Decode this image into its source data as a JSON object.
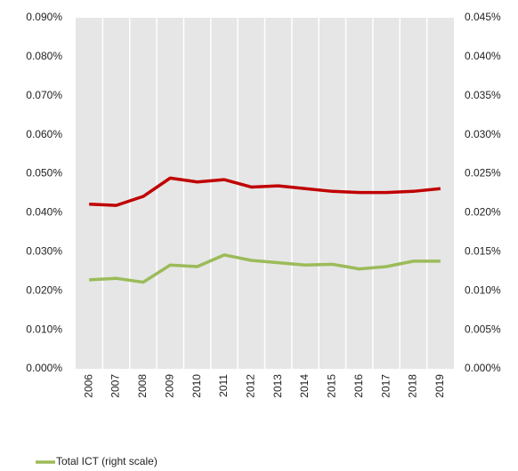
{
  "chart_data": {
    "type": "line",
    "categories": [
      "2006",
      "2007",
      "2008",
      "2009",
      "2010",
      "2011",
      "2012",
      "2013",
      "2014",
      "2015",
      "2016",
      "2017",
      "2018",
      "2019"
    ],
    "series": [
      {
        "color": "#c00000",
        "values": [
          0.0422,
          0.0419,
          0.0442,
          0.0489,
          0.0479,
          0.0485,
          0.0466,
          0.0469,
          0.0462,
          0.0455,
          0.0452,
          0.0452,
          0.0455,
          0.0462
        ]
      },
      {
        "name": "Total ICT (right scale)",
        "color": "#9bbb59",
        "axis": "y2",
        "values": [
          0.0114,
          0.0116,
          0.0111,
          0.0133,
          0.0131,
          0.0146,
          0.0139,
          0.0136,
          0.0133,
          0.0134,
          0.0128,
          0.0131,
          0.0138,
          0.0138
        ]
      }
    ],
    "ylim": [
      0,
      0.09
    ],
    "yticks": [
      {
        "value": 0,
        "label": "0.000%"
      },
      {
        "value": 0.01,
        "label": "0.010%"
      },
      {
        "value": 0.02,
        "label": "0.020%"
      },
      {
        "value": 0.03,
        "label": "0.030%"
      },
      {
        "value": 0.04,
        "label": "0.040%"
      },
      {
        "value": 0.05,
        "label": "0.050%"
      },
      {
        "value": 0.06,
        "label": "0.060%"
      },
      {
        "value": 0.07,
        "label": "0.070%"
      },
      {
        "value": 0.08,
        "label": "0.080%"
      },
      {
        "value": 0.09,
        "label": "0.090%"
      }
    ],
    "y2lim": [
      0,
      0.045
    ],
    "y2ticks": [
      {
        "value": 0,
        "label": "0.000%"
      },
      {
        "value": 0.005,
        "label": "0.005%"
      },
      {
        "value": 0.01,
        "label": "0.010%"
      },
      {
        "value": 0.015,
        "label": "0.015%"
      },
      {
        "value": 0.02,
        "label": "0.020%"
      },
      {
        "value": 0.025,
        "label": "0.025%"
      },
      {
        "value": 0.03,
        "label": "0.030%"
      },
      {
        "value": 0.035,
        "label": "0.035%"
      },
      {
        "value": 0.04,
        "label": "0.040%"
      },
      {
        "value": 0.045,
        "label": "0.045%"
      }
    ],
    "grid": "x",
    "legend": "bottom-left"
  }
}
